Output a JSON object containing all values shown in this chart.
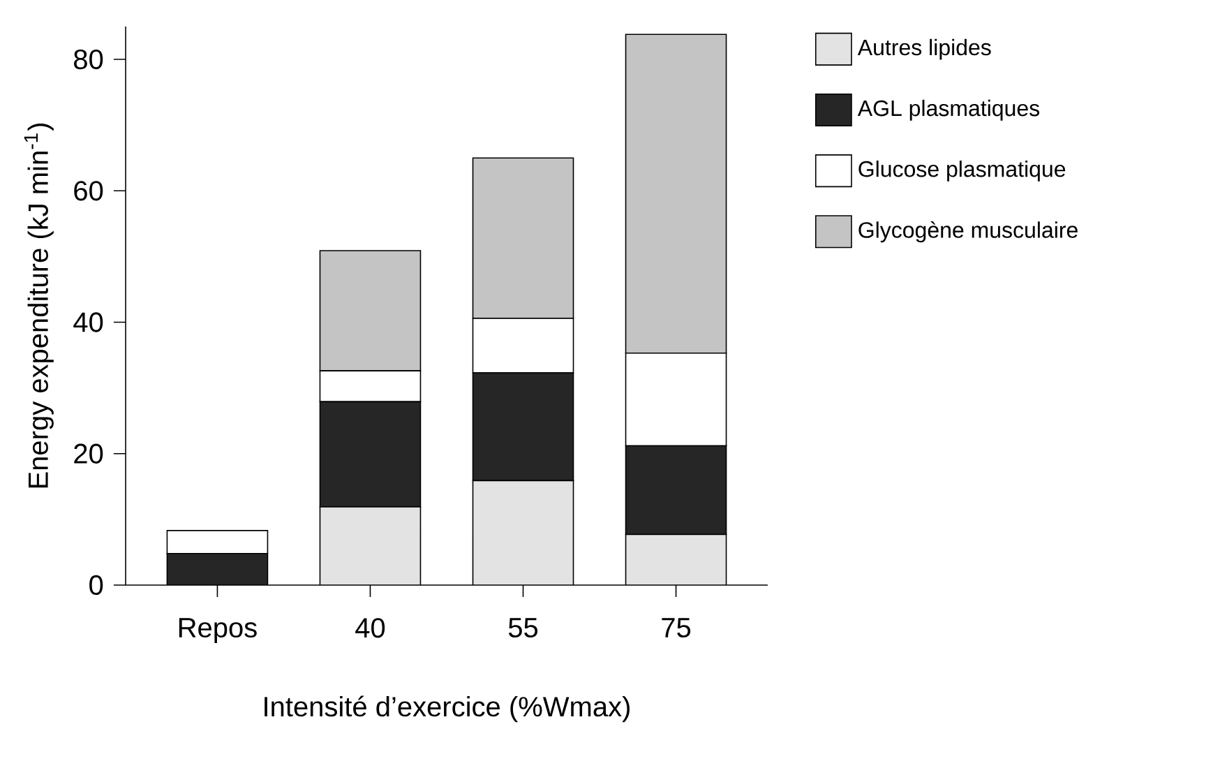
{
  "chart_data": {
    "type": "bar",
    "stacked": true,
    "xlabel": "Intensité d’exercice (%Wmax)",
    "ylabel": "Energy expenditure (kJ min$^{-1}$)",
    "categories": [
      "Repos",
      "40",
      "55",
      "75"
    ],
    "series": [
      {
        "name": "Autres lipides",
        "color": "#e3e3e3",
        "values": [
          0,
          11.9,
          15.9,
          7.7
        ]
      },
      {
        "name": "AGL plasmatiques",
        "color": "#262626",
        "values": [
          4.8,
          16.0,
          16.4,
          13.5
        ]
      },
      {
        "name": "Glucose plasmatique",
        "color": "#ffffff",
        "values": [
          3.5,
          4.7,
          8.3,
          14.1
        ]
      },
      {
        "name": "Glycogène musculaire",
        "color": "#c4c4c4",
        "values": [
          0,
          18.3,
          24.4,
          48.5
        ]
      }
    ],
    "ylim": [
      0,
      85
    ],
    "yticks": [
      0,
      20,
      40,
      60,
      80
    ],
    "legend": "top right",
    "grid": false
  }
}
